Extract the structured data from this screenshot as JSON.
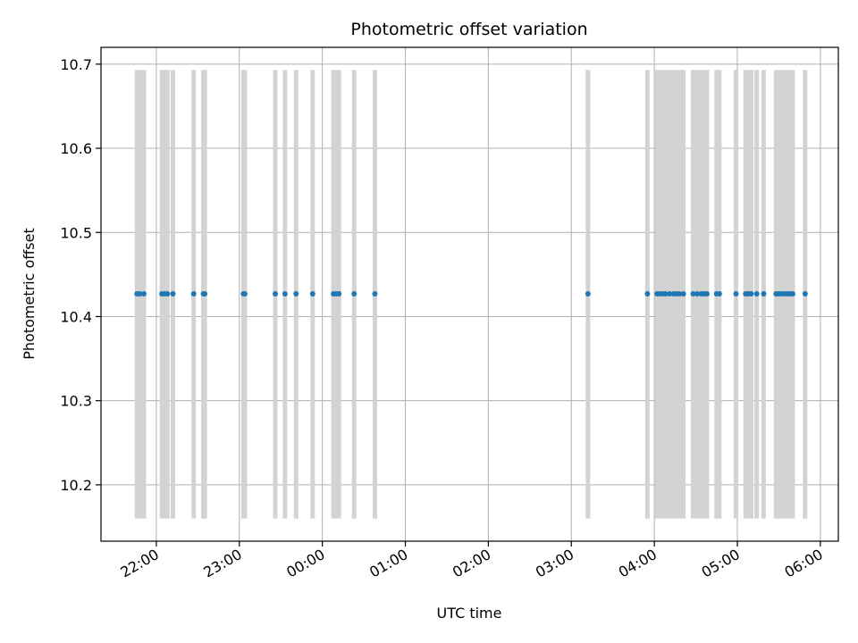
{
  "chart_data": {
    "type": "scatter",
    "title": "Photometric offset variation",
    "xlabel": "UTC time",
    "ylabel": "Photometric offset",
    "x_unit": "UTC time (hours, past midnight continues beyond 24)",
    "xlim": [
      "21:20",
      "06:13"
    ],
    "ylim": [
      10.133,
      10.72
    ],
    "x_ticks": [
      {
        "label": "22:00",
        "value": "22:00"
      },
      {
        "label": "23:00",
        "value": "23:00"
      },
      {
        "label": "00:00",
        "value": "00:00"
      },
      {
        "label": "01:00",
        "value": "01:00"
      },
      {
        "label": "02:00",
        "value": "02:00"
      },
      {
        "label": "03:00",
        "value": "03:00"
      },
      {
        "label": "04:00",
        "value": "04:00"
      },
      {
        "label": "05:00",
        "value": "05:00"
      },
      {
        "label": "06:00",
        "value": "06:00"
      }
    ],
    "y_ticks": [
      {
        "label": "10.2",
        "value": 10.2
      },
      {
        "label": "10.3",
        "value": 10.3
      },
      {
        "label": "10.4",
        "value": 10.4
      },
      {
        "label": "10.5",
        "value": 10.5
      },
      {
        "label": "10.6",
        "value": 10.6
      },
      {
        "label": "10.7",
        "value": 10.7
      }
    ],
    "grid": true,
    "series": [
      {
        "color": "#1f77b4",
        "error_bar_color": "#d3d3d3",
        "y_value": 10.427,
        "y_error_low": 10.16,
        "y_error_high": 10.693,
        "x": [
          "21:46",
          "21:48",
          "21:51",
          "22:04",
          "22:06",
          "22:08",
          "22:12",
          "22:27",
          "22:34",
          "22:35",
          "23:03",
          "23:04",
          "23:26",
          "23:33",
          "23:41",
          "23:53",
          "00:08",
          "00:10",
          "00:12",
          "00:23",
          "00:38",
          "03:12",
          "03:55",
          "04:02",
          "04:04",
          "04:06",
          "04:08",
          "04:11",
          "04:14",
          "04:16",
          "04:18",
          "04:21",
          "04:28",
          "04:31",
          "04:34",
          "04:36",
          "04:38",
          "04:45",
          "04:47",
          "04:59",
          "05:06",
          "05:08",
          "05:10",
          "05:14",
          "05:19",
          "05:28",
          "05:30",
          "05:32",
          "05:34",
          "05:36",
          "05:38",
          "05:40",
          "05:49"
        ]
      }
    ]
  }
}
